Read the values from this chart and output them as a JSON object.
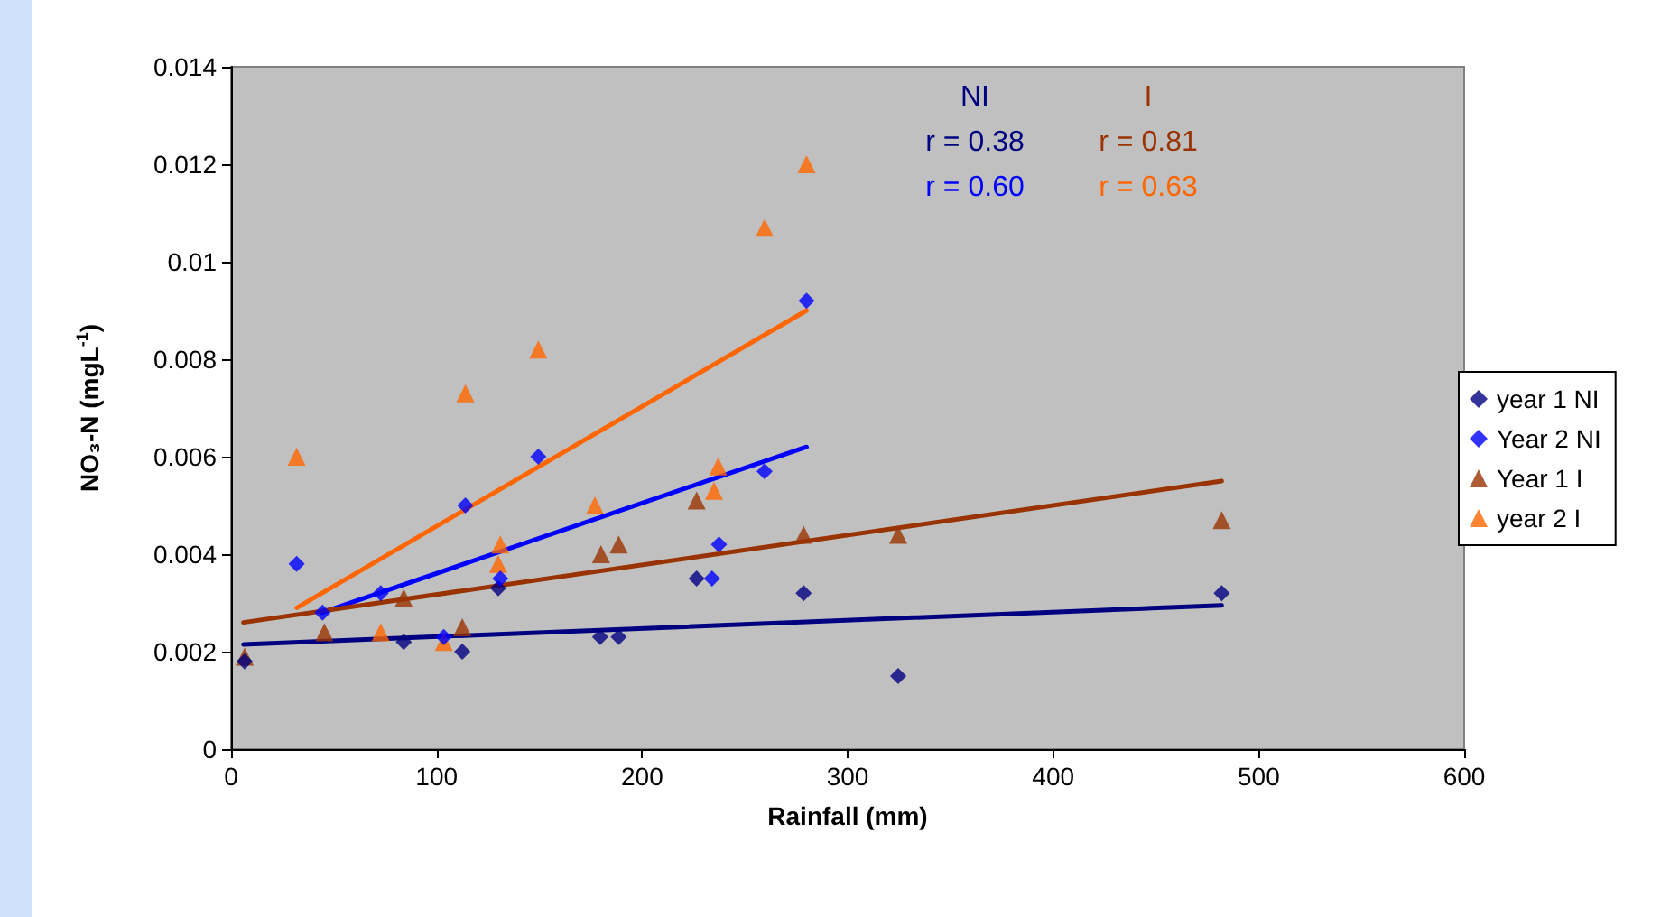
{
  "chart_data": {
    "type": "scatter",
    "xlabel": "Rainfall (mm)",
    "ylabel": "NO₃-N (mgL$^{-1}$)",
    "xlim": [
      0,
      600
    ],
    "xticks": [
      0,
      100,
      200,
      300,
      400,
      500,
      600
    ],
    "ylim": [
      0,
      0.014
    ],
    "yticks": [
      0,
      0.002,
      0.004,
      0.006,
      0.008,
      0.01,
      0.012,
      0.014
    ],
    "grid": false,
    "legend": "right",
    "annotations": [
      "NI",
      "r = 0.38",
      "r = 0.60",
      "I",
      "r = 0.81",
      "r = 0.63"
    ],
    "series": [
      {
        "name": "year 1 NI",
        "color": "#000080",
        "marker": "diamond",
        "x": [
          6.6,
          84,
          112.5,
          130,
          179.6,
          188.6,
          226.5,
          278.6,
          324.6,
          482
        ],
        "values": [
          0.0018,
          0.0022,
          0.002,
          0.0033,
          0.0023,
          0.0023,
          0.0035,
          0.0032,
          0.0015,
          0.0032
        ]
      },
      {
        "name": "Year 2 NI",
        "color": "#0000ff",
        "marker": "diamond",
        "x": [
          31.9,
          44.5,
          72.8,
          103.5,
          114,
          131,
          149.5,
          234,
          237.4,
          259.6,
          280
        ],
        "values": [
          0.0038,
          0.0028,
          0.0032,
          0.0023,
          0.005,
          0.0035,
          0.006,
          0.0035,
          0.0042,
          0.0057,
          0.0092
        ]
      },
      {
        "name": "Year 1 I",
        "color": "#993300",
        "marker": "triangle",
        "x": [
          6.6,
          45.4,
          84,
          112.5,
          180,
          188.6,
          226.5,
          278.6,
          324.6,
          482
        ],
        "values": [
          0.0019,
          0.0024,
          0.0031,
          0.0025,
          0.004,
          0.0042,
          0.0051,
          0.0044,
          0.0044,
          0.0047
        ]
      },
      {
        "name": "year 2 I",
        "color": "#ff6600",
        "marker": "triangle",
        "x": [
          31.9,
          72.8,
          103.5,
          114,
          130,
          131,
          149.5,
          177,
          235,
          237,
          259.6,
          280
        ],
        "values": [
          0.006,
          0.0024,
          0.0022,
          0.0073,
          0.0038,
          0.0042,
          0.0082,
          0.005,
          0.0053,
          0.0058,
          0.0107,
          0.012
        ]
      },
      {
        "type": "line",
        "color": "#000080",
        "marker": "none",
        "x": [
          6,
          482
        ],
        "values": [
          0.00215,
          0.00295
        ]
      },
      {
        "type": "line",
        "color": "#0000ff",
        "marker": "none",
        "x": [
          44,
          280
        ],
        "values": [
          0.0028,
          0.0062
        ]
      },
      {
        "type": "line",
        "color": "#993300",
        "marker": "none",
        "x": [
          6,
          482
        ],
        "values": [
          0.0026,
          0.0055
        ]
      },
      {
        "type": "line",
        "color": "#ff6600",
        "marker": "none",
        "x": [
          32,
          280
        ],
        "values": [
          0.0029,
          0.009
        ]
      }
    ]
  }
}
